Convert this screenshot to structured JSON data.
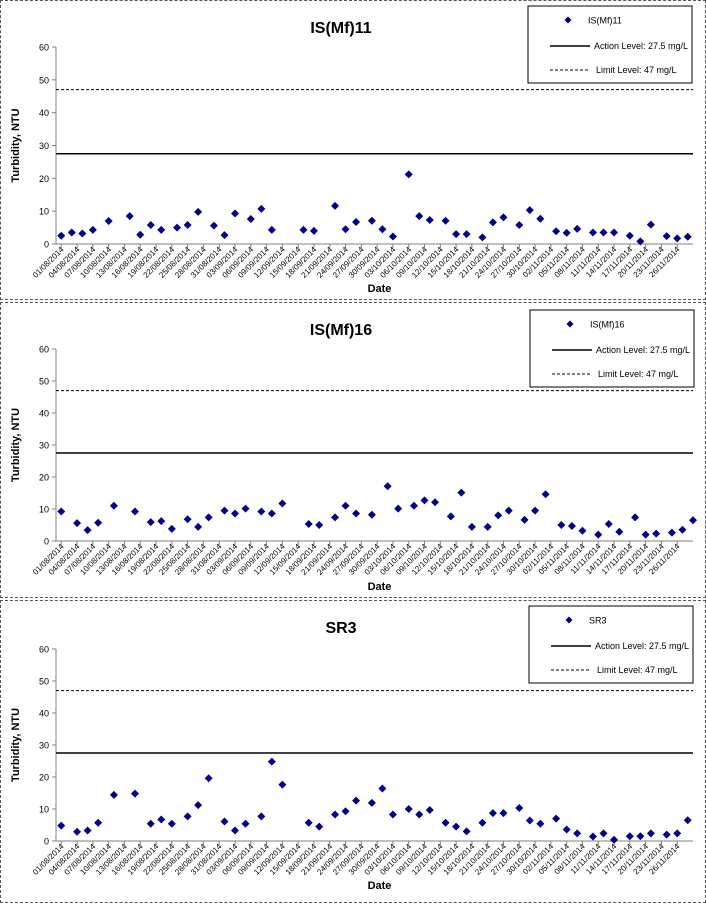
{
  "colors": {
    "marker": "#00008B",
    "line": "#000000",
    "axis": "#808080",
    "background": "#ffffff"
  },
  "date_ticks": [
    "01/08/2014",
    "04/08/2014",
    "07/08/2014",
    "10/08/2014",
    "13/08/2014",
    "16/08/2014",
    "19/08/2014",
    "22/08/2014",
    "25/08/2014",
    "28/08/2014",
    "31/08/2014",
    "03/09/2014",
    "06/09/2014",
    "09/09/2014",
    "12/09/2014",
    "15/09/2014",
    "18/09/2014",
    "21/09/2014",
    "24/09/2014",
    "27/09/2014",
    "30/09/2014",
    "03/10/2014",
    "06/10/2014",
    "09/10/2014",
    "12/10/2014",
    "15/10/2014",
    "18/10/2014",
    "21/10/2014",
    "24/10/2014",
    "27/10/2014",
    "30/10/2014",
    "02/11/2014",
    "05/11/2014",
    "08/11/2014",
    "11/11/2014",
    "14/11/2014",
    "17/11/2014",
    "20/11/2014",
    "23/11/2014",
    "26/11/2014"
  ],
  "chart_data": [
    {
      "type": "scatter",
      "title": "IS(Mf)11",
      "xlabel": "Date",
      "ylabel": "Turbidity, NTU",
      "ylim": [
        0,
        60
      ],
      "yticks": [
        0,
        10,
        20,
        30,
        40,
        50,
        60
      ],
      "xlim": [
        "2014-08-01",
        "2014-11-28"
      ],
      "grid": false,
      "legend_position": "top-right",
      "reference_lines": [
        {
          "name": "Action Level: 27.5 mg/L",
          "value": 27.5,
          "style": "solid"
        },
        {
          "name": "Limit Level: 47 mg/L",
          "value": 47,
          "style": "dashed"
        }
      ],
      "series": [
        {
          "name": "IS(Mf)11",
          "points": [
            {
              "x": "2014-08-01",
              "y": 2.5
            },
            {
              "x": "2014-08-03",
              "y": 3.5
            },
            {
              "x": "2014-08-05",
              "y": 3.2
            },
            {
              "x": "2014-08-07",
              "y": 4.3
            },
            {
              "x": "2014-08-10",
              "y": 7.0
            },
            {
              "x": "2014-08-14",
              "y": 8.5
            },
            {
              "x": "2014-08-16",
              "y": 2.8
            },
            {
              "x": "2014-08-18",
              "y": 5.8
            },
            {
              "x": "2014-08-20",
              "y": 4.3
            },
            {
              "x": "2014-08-23",
              "y": 5.0
            },
            {
              "x": "2014-08-25",
              "y": 5.8
            },
            {
              "x": "2014-08-27",
              "y": 9.8
            },
            {
              "x": "2014-08-30",
              "y": 5.6
            },
            {
              "x": "2014-09-01",
              "y": 2.7
            },
            {
              "x": "2014-09-03",
              "y": 9.3
            },
            {
              "x": "2014-09-06",
              "y": 7.6
            },
            {
              "x": "2014-09-08",
              "y": 10.7
            },
            {
              "x": "2014-09-10",
              "y": 4.3
            },
            {
              "x": "2014-09-16",
              "y": 4.3
            },
            {
              "x": "2014-09-18",
              "y": 4.0
            },
            {
              "x": "2014-09-22",
              "y": 11.6
            },
            {
              "x": "2014-09-24",
              "y": 4.5
            },
            {
              "x": "2014-09-26",
              "y": 6.7
            },
            {
              "x": "2014-09-29",
              "y": 7.1
            },
            {
              "x": "2014-10-01",
              "y": 4.5
            },
            {
              "x": "2014-10-03",
              "y": 2.3
            },
            {
              "x": "2014-10-06",
              "y": 21.2
            },
            {
              "x": "2014-10-08",
              "y": 8.5
            },
            {
              "x": "2014-10-10",
              "y": 7.3
            },
            {
              "x": "2014-10-13",
              "y": 7.1
            },
            {
              "x": "2014-10-15",
              "y": 3.0
            },
            {
              "x": "2014-10-17",
              "y": 3.0
            },
            {
              "x": "2014-10-20",
              "y": 2.0
            },
            {
              "x": "2014-10-22",
              "y": 6.6
            },
            {
              "x": "2014-10-24",
              "y": 8.1
            },
            {
              "x": "2014-10-27",
              "y": 5.8
            },
            {
              "x": "2014-10-29",
              "y": 10.3
            },
            {
              "x": "2014-10-31",
              "y": 7.7
            },
            {
              "x": "2014-11-03",
              "y": 3.9
            },
            {
              "x": "2014-11-05",
              "y": 3.4
            },
            {
              "x": "2014-11-07",
              "y": 4.6
            },
            {
              "x": "2014-11-10",
              "y": 3.5
            },
            {
              "x": "2014-11-12",
              "y": 3.5
            },
            {
              "x": "2014-11-14",
              "y": 3.5
            },
            {
              "x": "2014-11-17",
              "y": 2.5
            },
            {
              "x": "2014-11-19",
              "y": 0.8
            },
            {
              "x": "2014-11-21",
              "y": 5.9
            },
            {
              "x": "2014-11-24",
              "y": 2.4
            },
            {
              "x": "2014-11-26",
              "y": 1.7
            },
            {
              "x": "2014-11-28",
              "y": 2.2
            }
          ]
        }
      ]
    },
    {
      "type": "scatter",
      "title": "IS(Mf)16",
      "xlabel": "Date",
      "ylabel": "Turbidity, NTU",
      "ylim": [
        0,
        60
      ],
      "yticks": [
        0,
        10,
        20,
        30,
        40,
        50,
        60
      ],
      "xlim": [
        "2014-08-01",
        "2014-11-28"
      ],
      "grid": false,
      "legend_position": "top-right",
      "reference_lines": [
        {
          "name": "Action Level: 27.5 mg/L",
          "value": 27.5,
          "style": "solid"
        },
        {
          "name": "Limit Level: 47 mg/L",
          "value": 47,
          "style": "dashed"
        }
      ],
      "series": [
        {
          "name": "IS(Mf)16",
          "points": [
            {
              "x": "2014-08-01",
              "y": 9.2
            },
            {
              "x": "2014-08-04",
              "y": 5.6
            },
            {
              "x": "2014-08-06",
              "y": 3.4
            },
            {
              "x": "2014-08-08",
              "y": 5.7
            },
            {
              "x": "2014-08-11",
              "y": 11.0
            },
            {
              "x": "2014-08-15",
              "y": 9.2
            },
            {
              "x": "2014-08-18",
              "y": 5.9
            },
            {
              "x": "2014-08-20",
              "y": 6.2
            },
            {
              "x": "2014-08-22",
              "y": 3.8
            },
            {
              "x": "2014-08-25",
              "y": 6.8
            },
            {
              "x": "2014-08-27",
              "y": 4.4
            },
            {
              "x": "2014-08-29",
              "y": 7.4
            },
            {
              "x": "2014-09-01",
              "y": 9.5
            },
            {
              "x": "2014-09-03",
              "y": 8.6
            },
            {
              "x": "2014-09-05",
              "y": 10.1
            },
            {
              "x": "2014-09-08",
              "y": 9.2
            },
            {
              "x": "2014-09-10",
              "y": 8.6
            },
            {
              "x": "2014-09-12",
              "y": 11.7
            },
            {
              "x": "2014-09-17",
              "y": 5.3
            },
            {
              "x": "2014-09-19",
              "y": 5.0
            },
            {
              "x": "2014-09-22",
              "y": 7.4
            },
            {
              "x": "2014-09-24",
              "y": 11.0
            },
            {
              "x": "2014-09-26",
              "y": 8.6
            },
            {
              "x": "2014-09-29",
              "y": 8.2
            },
            {
              "x": "2014-10-02",
              "y": 17.1
            },
            {
              "x": "2014-10-04",
              "y": 10.1
            },
            {
              "x": "2014-10-07",
              "y": 11.0
            },
            {
              "x": "2014-10-09",
              "y": 12.7
            },
            {
              "x": "2014-10-11",
              "y": 12.1
            },
            {
              "x": "2014-10-14",
              "y": 7.7
            },
            {
              "x": "2014-10-16",
              "y": 15.1
            },
            {
              "x": "2014-10-18",
              "y": 4.4
            },
            {
              "x": "2014-10-21",
              "y": 4.4
            },
            {
              "x": "2014-10-23",
              "y": 8.0
            },
            {
              "x": "2014-10-25",
              "y": 9.5
            },
            {
              "x": "2014-10-28",
              "y": 6.6
            },
            {
              "x": "2014-10-30",
              "y": 9.5
            },
            {
              "x": "2014-11-01",
              "y": 14.6
            },
            {
              "x": "2014-11-04",
              "y": 5.0
            },
            {
              "x": "2014-11-06",
              "y": 4.7
            },
            {
              "x": "2014-11-08",
              "y": 3.2
            },
            {
              "x": "2014-11-11",
              "y": 2.0
            },
            {
              "x": "2014-11-13",
              "y": 5.3
            },
            {
              "x": "2014-11-15",
              "y": 2.9
            },
            {
              "x": "2014-11-18",
              "y": 7.4
            },
            {
              "x": "2014-11-20",
              "y": 2.0
            },
            {
              "x": "2014-11-22",
              "y": 2.3
            },
            {
              "x": "2014-11-25",
              "y": 2.6
            },
            {
              "x": "2014-11-27",
              "y": 3.5
            },
            {
              "x": "2014-11-29",
              "y": 6.5
            }
          ]
        }
      ]
    },
    {
      "type": "scatter",
      "title": "SR3",
      "xlabel": "Date",
      "ylabel": "Turbidity, NTU",
      "ylim": [
        0,
        60
      ],
      "yticks": [
        0,
        10,
        20,
        30,
        40,
        50,
        60
      ],
      "xlim": [
        "2014-08-01",
        "2014-11-28"
      ],
      "grid": false,
      "legend_position": "top-right",
      "reference_lines": [
        {
          "name": "Action Level: 27.5 mg/L",
          "value": 27.5,
          "style": "solid"
        },
        {
          "name": "Limit Level: 47 mg/L",
          "value": 47,
          "style": "dashed"
        }
      ],
      "series": [
        {
          "name": "SR3",
          "points": [
            {
              "x": "2014-08-01",
              "y": 4.8
            },
            {
              "x": "2014-08-04",
              "y": 2.9
            },
            {
              "x": "2014-08-06",
              "y": 3.3
            },
            {
              "x": "2014-08-08",
              "y": 5.7
            },
            {
              "x": "2014-08-11",
              "y": 14.4
            },
            {
              "x": "2014-08-15",
              "y": 14.8
            },
            {
              "x": "2014-08-18",
              "y": 5.4
            },
            {
              "x": "2014-08-20",
              "y": 6.7
            },
            {
              "x": "2014-08-22",
              "y": 5.4
            },
            {
              "x": "2014-08-25",
              "y": 7.7
            },
            {
              "x": "2014-08-27",
              "y": 11.2
            },
            {
              "x": "2014-08-29",
              "y": 19.6
            },
            {
              "x": "2014-09-01",
              "y": 6.1
            },
            {
              "x": "2014-09-03",
              "y": 3.3
            },
            {
              "x": "2014-09-05",
              "y": 5.4
            },
            {
              "x": "2014-09-08",
              "y": 7.7
            },
            {
              "x": "2014-09-10",
              "y": 24.8
            },
            {
              "x": "2014-09-12",
              "y": 17.6
            },
            {
              "x": "2014-09-17",
              "y": 5.7
            },
            {
              "x": "2014-09-19",
              "y": 4.5
            },
            {
              "x": "2014-09-22",
              "y": 8.3
            },
            {
              "x": "2014-09-24",
              "y": 9.3
            },
            {
              "x": "2014-09-26",
              "y": 12.6
            },
            {
              "x": "2014-09-29",
              "y": 11.9
            },
            {
              "x": "2014-10-01",
              "y": 16.4
            },
            {
              "x": "2014-10-03",
              "y": 8.3
            },
            {
              "x": "2014-10-06",
              "y": 10.0
            },
            {
              "x": "2014-10-08",
              "y": 8.3
            },
            {
              "x": "2014-10-10",
              "y": 9.7
            },
            {
              "x": "2014-10-13",
              "y": 5.7
            },
            {
              "x": "2014-10-15",
              "y": 4.5
            },
            {
              "x": "2014-10-17",
              "y": 3.0
            },
            {
              "x": "2014-10-20",
              "y": 5.7
            },
            {
              "x": "2014-10-22",
              "y": 8.7
            },
            {
              "x": "2014-10-24",
              "y": 8.7
            },
            {
              "x": "2014-10-27",
              "y": 10.3
            },
            {
              "x": "2014-10-29",
              "y": 6.4
            },
            {
              "x": "2014-10-31",
              "y": 5.4
            },
            {
              "x": "2014-11-03",
              "y": 7.0
            },
            {
              "x": "2014-11-05",
              "y": 3.6
            },
            {
              "x": "2014-11-07",
              "y": 2.4
            },
            {
              "x": "2014-11-10",
              "y": 1.4
            },
            {
              "x": "2014-11-12",
              "y": 2.4
            },
            {
              "x": "2014-11-14",
              "y": 0.4
            },
            {
              "x": "2014-11-17",
              "y": 1.5
            },
            {
              "x": "2014-11-19",
              "y": 1.5
            },
            {
              "x": "2014-11-21",
              "y": 2.4
            },
            {
              "x": "2014-11-24",
              "y": 2.0
            },
            {
              "x": "2014-11-26",
              "y": 2.4
            },
            {
              "x": "2014-11-28",
              "y": 6.5
            }
          ]
        }
      ]
    }
  ]
}
